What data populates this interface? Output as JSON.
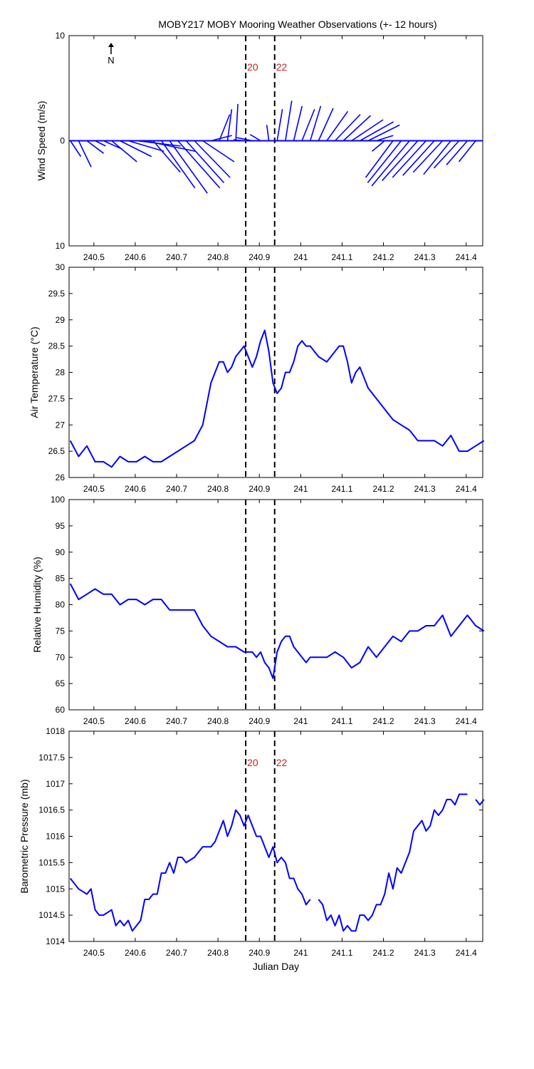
{
  "chart_data": [
    {
      "type": "line",
      "subtype": "wind-vector",
      "title": "MOBY217 MOBY Mooring Weather Observations (+- 12 hours)",
      "ylabel": "Wind Speed (m/s)",
      "xlabel": "",
      "xlim": [
        240.44,
        241.44
      ],
      "ylim": [
        -10,
        10
      ],
      "ytick_labels": [
        "10",
        "0",
        "10"
      ],
      "xticks": [
        "240.5",
        "240.6",
        "240.7",
        "240.8",
        "240.9",
        "241",
        "241.1",
        "241.2",
        "241.3",
        "241.4"
      ],
      "north_label": "N",
      "markers": [
        {
          "x": 240.867,
          "label": "20"
        },
        {
          "x": 240.937,
          "label": "22"
        }
      ],
      "series": [
        {
          "x": [
            240.443,
            240.463,
            240.483,
            240.503,
            240.523,
            240.543,
            240.563,
            240.583,
            240.603,
            240.623,
            240.643,
            240.663,
            240.683,
            240.703,
            240.723,
            240.743,
            240.763,
            240.783,
            240.803,
            240.823,
            240.843,
            240.863,
            240.883,
            240.903,
            240.923,
            240.943,
            240.963,
            240.983,
            241.003,
            241.023,
            241.043,
            241.063,
            241.083,
            241.103,
            241.123,
            241.143,
            241.163,
            241.183,
            241.203,
            241.223,
            241.243,
            241.263,
            241.283,
            241.303,
            241.323,
            241.343,
            241.363,
            241.383,
            241.403,
            241.423
          ],
          "u": [
            1.0,
            1.2,
            1.6,
            1.0,
            1.8,
            2.4,
            3.0,
            3.4,
            4.2,
            4.8,
            2.6,
            3.2,
            3.6,
            4.0,
            3.6,
            3.4,
            3.0,
            2.0,
            1.0,
            0.4,
            0.2,
            -1.0,
            -1.5,
            -1.0,
            -0.2,
            0.5,
            0.6,
            0.8,
            1.2,
            1.0,
            1.4,
            2.0,
            2.4,
            2.6,
            3.0,
            3.2,
            3.0,
            1.6,
            -1.2,
            -2.6,
            -3.2,
            -3.6,
            -3.4,
            -3.2,
            -3.0,
            -2.8,
            -2.6,
            -2.4,
            -2.0,
            -1.6
          ],
          "v": [
            -1.5,
            -2.5,
            -1.2,
            -0.5,
            -0.8,
            -2.0,
            -1.5,
            -1.0,
            -0.5,
            -1.0,
            -3.0,
            -4.5,
            -5.0,
            -4.5,
            -4.0,
            -3.5,
            -2.0,
            0.5,
            2.5,
            3.0,
            3.5,
            0.1,
            0.3,
            0.6,
            1.5,
            3.0,
            3.8,
            3.3,
            3.0,
            3.3,
            3.1,
            2.8,
            2.5,
            2.4,
            2.0,
            1.8,
            1.5,
            0.5,
            -1.0,
            -3.5,
            -4.0,
            -4.3,
            -3.8,
            -3.5,
            -3.3,
            -3.0,
            -3.2,
            -2.6,
            -2.3,
            -2.0
          ]
        }
      ]
    },
    {
      "type": "line",
      "ylabel": "Air Temperature (°C)",
      "xlabel": "",
      "xlim": [
        240.44,
        241.44
      ],
      "ylim": [
        26,
        30
      ],
      "ytick_labels": [
        "26",
        "26.5",
        "27",
        "27.5",
        "28",
        "28.5",
        "29",
        "29.5",
        "30"
      ],
      "xticks": [
        "240.5",
        "240.6",
        "240.7",
        "240.8",
        "240.9",
        "241",
        "241.1",
        "241.2",
        "241.3",
        "241.4"
      ],
      "markers": [
        {
          "x": 240.867,
          "label": ""
        },
        {
          "x": 240.937,
          "label": ""
        }
      ],
      "series": [
        {
          "x": [
            240.443,
            240.463,
            240.483,
            240.503,
            240.523,
            240.543,
            240.563,
            240.583,
            240.603,
            240.623,
            240.643,
            240.663,
            240.683,
            240.703,
            240.723,
            240.743,
            240.763,
            240.773,
            240.783,
            240.793,
            240.803,
            240.813,
            240.823,
            240.833,
            240.843,
            240.853,
            240.863,
            240.873,
            240.883,
            240.893,
            240.903,
            240.913,
            240.923,
            240.933,
            240.943,
            240.953,
            240.963,
            240.973,
            240.983,
            240.993,
            241.003,
            241.013,
            241.023,
            241.043,
            241.063,
            241.083,
            241.093,
            241.103,
            241.113,
            241.123,
            241.133,
            241.143,
            241.163,
            241.183,
            241.203,
            241.223,
            241.243,
            241.263,
            241.283,
            241.303,
            241.323,
            241.343,
            241.363,
            241.383,
            241.403,
            241.423,
            241.443
          ],
          "y": [
            26.7,
            26.4,
            26.6,
            26.3,
            26.3,
            26.2,
            26.4,
            26.3,
            26.3,
            26.4,
            26.3,
            26.3,
            26.4,
            26.5,
            26.6,
            26.7,
            27.0,
            27.4,
            27.8,
            28.0,
            28.2,
            28.2,
            28.0,
            28.1,
            28.3,
            28.4,
            28.5,
            28.3,
            28.1,
            28.3,
            28.6,
            28.8,
            28.4,
            27.8,
            27.6,
            27.7,
            28.0,
            28.0,
            28.2,
            28.5,
            28.6,
            28.5,
            28.5,
            28.3,
            28.2,
            28.4,
            28.5,
            28.5,
            28.2,
            27.8,
            28.0,
            28.1,
            27.7,
            27.5,
            27.3,
            27.1,
            27.0,
            26.9,
            26.7,
            26.7,
            26.7,
            26.6,
            26.8,
            26.5,
            26.5,
            26.6,
            26.7
          ]
        }
      ]
    },
    {
      "type": "line",
      "ylabel": "Relative Humidity (%)",
      "xlabel": "",
      "xlim": [
        240.44,
        241.44
      ],
      "ylim": [
        60,
        100
      ],
      "ytick_labels": [
        "60",
        "65",
        "70",
        "75",
        "80",
        "85",
        "90",
        "95",
        "100"
      ],
      "xticks": [
        "240.5",
        "240.6",
        "240.7",
        "240.8",
        "240.9",
        "241",
        "241.1",
        "241.2",
        "241.3",
        "241.4"
      ],
      "markers": [
        {
          "x": 240.867,
          "label": ""
        },
        {
          "x": 240.937,
          "label": ""
        }
      ],
      "series": [
        {
          "x": [
            240.443,
            240.463,
            240.483,
            240.503,
            240.523,
            240.543,
            240.563,
            240.583,
            240.603,
            240.623,
            240.643,
            240.663,
            240.683,
            240.703,
            240.723,
            240.743,
            240.763,
            240.783,
            240.803,
            240.823,
            240.843,
            240.863,
            240.883,
            240.893,
            240.903,
            240.913,
            240.923,
            240.933,
            240.943,
            240.953,
            240.963,
            240.973,
            240.983,
            240.993,
            241.003,
            241.013,
            241.023,
            241.043,
            241.063,
            241.083,
            241.103,
            241.123,
            241.143,
            241.163,
            241.183,
            241.203,
            241.223,
            241.243,
            241.263,
            241.283,
            241.303,
            241.323,
            241.343,
            241.363,
            241.383,
            241.403,
            241.423,
            241.443
          ],
          "y": [
            84,
            81,
            82,
            83,
            82,
            82,
            80,
            81,
            81,
            80,
            81,
            81,
            79,
            79,
            79,
            79,
            76,
            74,
            73,
            72,
            72,
            71,
            71,
            70,
            71,
            69,
            68,
            66,
            71,
            73,
            74,
            74,
            72,
            71,
            70,
            69,
            70,
            70,
            70,
            71,
            70,
            68,
            69,
            72,
            70,
            72,
            74,
            73,
            75,
            75,
            76,
            76,
            78,
            74,
            76,
            78,
            76,
            75
          ]
        }
      ]
    },
    {
      "type": "line",
      "ylabel": "Barometric Pressure (mb)",
      "xlabel": "Julian Day",
      "xlim": [
        240.44,
        241.44
      ],
      "ylim": [
        1014,
        1018
      ],
      "ytick_labels": [
        "1014",
        "1014.5",
        "1015",
        "1015.5",
        "1016",
        "1016.5",
        "1017",
        "1017.5",
        "1018"
      ],
      "xticks": [
        "240.5",
        "240.6",
        "240.7",
        "240.8",
        "240.9",
        "241",
        "241.1",
        "241.2",
        "241.3",
        "241.4"
      ],
      "markers": [
        {
          "x": 240.867,
          "label": "20"
        },
        {
          "x": 240.937,
          "label": "22"
        }
      ],
      "series": [
        {
          "segments": [
            {
              "x": [
                240.443,
                240.463,
                240.483,
                240.493,
                240.503,
                240.513,
                240.523,
                240.543,
                240.553,
                240.563,
                240.573,
                240.583,
                240.593,
                240.603,
                240.613,
                240.623,
                240.633,
                240.643,
                240.653,
                240.663,
                240.673,
                240.683,
                240.693,
                240.703,
                240.713,
                240.723,
                240.743,
                240.763,
                240.773,
                240.783,
                240.793,
                240.803,
                240.813,
                240.823,
                240.833,
                240.843,
                240.853,
                240.863,
                240.873,
                240.883,
                240.893,
                240.903,
                240.913,
                240.923,
                240.933,
                240.943,
                240.953,
                240.963,
                240.973,
                240.983,
                240.993,
                241.003,
                241.013,
                241.023
              ],
              "y": [
                1015.2,
                1015.0,
                1014.9,
                1015.0,
                1014.6,
                1014.5,
                1014.5,
                1014.6,
                1014.3,
                1014.4,
                1014.3,
                1014.4,
                1014.2,
                1014.3,
                1014.4,
                1014.8,
                1014.8,
                1014.9,
                1014.9,
                1015.3,
                1015.3,
                1015.5,
                1015.3,
                1015.6,
                1015.6,
                1015.5,
                1015.6,
                1015.8,
                1015.8,
                1015.8,
                1015.9,
                1016.1,
                1016.3,
                1016.0,
                1016.2,
                1016.5,
                1016.4,
                1016.2,
                1016.4,
                1016.2,
                1016.0,
                1016.0,
                1015.8,
                1015.6,
                1015.8,
                1015.5,
                1015.6,
                1015.5,
                1015.2,
                1015.2,
                1015.0,
                1014.9,
                1014.7,
                1014.8
              ]
            },
            {
              "x": [
                241.043,
                241.053,
                241.063,
                241.073,
                241.083,
                241.093,
                241.103,
                241.113,
                241.123,
                241.133,
                241.143,
                241.153,
                241.163,
                241.173,
                241.183,
                241.193,
                241.203,
                241.213,
                241.223,
                241.233,
                241.243,
                241.253,
                241.263,
                241.273,
                241.283,
                241.293,
                241.303,
                241.313,
                241.323,
                241.333,
                241.343,
                241.353,
                241.363,
                241.373,
                241.383,
                241.393,
                241.403
              ],
              "y": [
                1014.8,
                1014.7,
                1014.4,
                1014.5,
                1014.3,
                1014.5,
                1014.2,
                1014.3,
                1014.2,
                1014.2,
                1014.5,
                1014.5,
                1014.4,
                1014.5,
                1014.7,
                1014.7,
                1014.9,
                1015.3,
                1015.0,
                1015.4,
                1015.3,
                1015.5,
                1015.7,
                1016.1,
                1016.2,
                1016.3,
                1016.1,
                1016.2,
                1016.5,
                1016.4,
                1016.5,
                1016.7,
                1016.7,
                1016.6,
                1016.8,
                1016.8,
                1016.8
              ]
            },
            {
              "x": [
                241.423,
                241.433,
                241.443
              ],
              "y": [
                1016.7,
                1016.6,
                1016.7
              ]
            }
          ]
        }
      ]
    }
  ]
}
